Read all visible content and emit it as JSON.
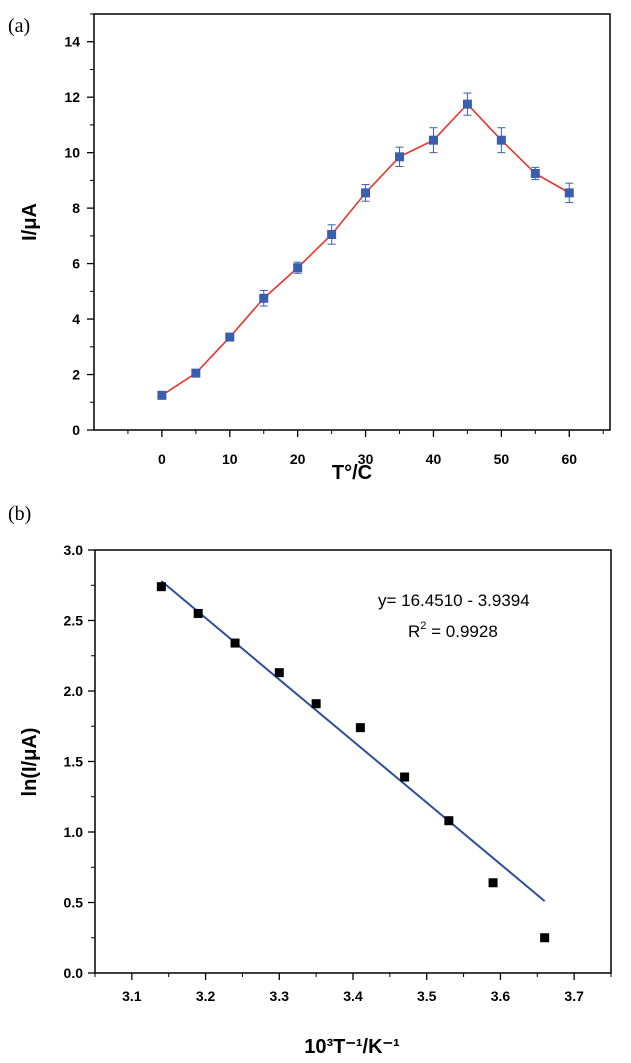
{
  "chart_data": [
    {
      "panel_label": "(a)",
      "type": "line",
      "xlabel": "T°/C",
      "ylabel": "I/μA",
      "xlim": [
        -10,
        66
      ],
      "ylim": [
        0,
        15
      ],
      "x_ticks": [
        0,
        10,
        20,
        30,
        40,
        50,
        60
      ],
      "y_ticks": [
        0,
        2,
        4,
        6,
        8,
        10,
        12,
        14
      ],
      "grid": false,
      "colors": {
        "line": "#e8332a",
        "marker": "#3a5dae",
        "errorbar": "#3a5dae"
      },
      "series": [
        {
          "x": [
            0,
            5,
            10,
            15,
            20,
            25,
            30,
            35,
            40,
            45,
            50,
            55,
            60
          ],
          "y": [
            1.25,
            2.05,
            3.35,
            4.75,
            5.85,
            7.05,
            8.55,
            9.85,
            10.45,
            11.75,
            10.45,
            9.25,
            8.55
          ],
          "error": [
            0.1,
            0.08,
            0.1,
            0.28,
            0.2,
            0.35,
            0.3,
            0.35,
            0.45,
            0.4,
            0.45,
            0.22,
            0.35
          ]
        }
      ]
    },
    {
      "panel_label": "(b)",
      "type": "scatter",
      "xlabel": "10³T⁻¹/K⁻¹",
      "ylabel": "ln(I/μA)",
      "xlim": [
        3.05,
        3.75
      ],
      "ylim": [
        0.0,
        3.0
      ],
      "x_ticks": [
        "3.1",
        "3.2",
        "3.3",
        "3.4",
        "3.5",
        "3.6",
        "3.7"
      ],
      "y_ticks": [
        "0.0",
        "0.5",
        "1.0",
        "1.5",
        "2.0",
        "2.5",
        "3.0"
      ],
      "grid": false,
      "colors": {
        "marker": "#000000",
        "fit_line": "#2f4f9c"
      },
      "series": [
        {
          "x": [
            3.14,
            3.19,
            3.24,
            3.3,
            3.35,
            3.41,
            3.47,
            3.53,
            3.59,
            3.66
          ],
          "y": [
            2.74,
            2.55,
            2.34,
            2.13,
            1.91,
            1.74,
            1.39,
            1.08,
            0.64,
            0.25
          ]
        }
      ],
      "fit_line": {
        "x": [
          3.14,
          3.66
        ],
        "y": [
          2.78,
          0.51
        ]
      },
      "annotation": {
        "equation": "y= 16.4510 - 3.9394",
        "r2_label": "R",
        "r2_sup": "2",
        "r2_value": " = 0.9928"
      }
    }
  ]
}
